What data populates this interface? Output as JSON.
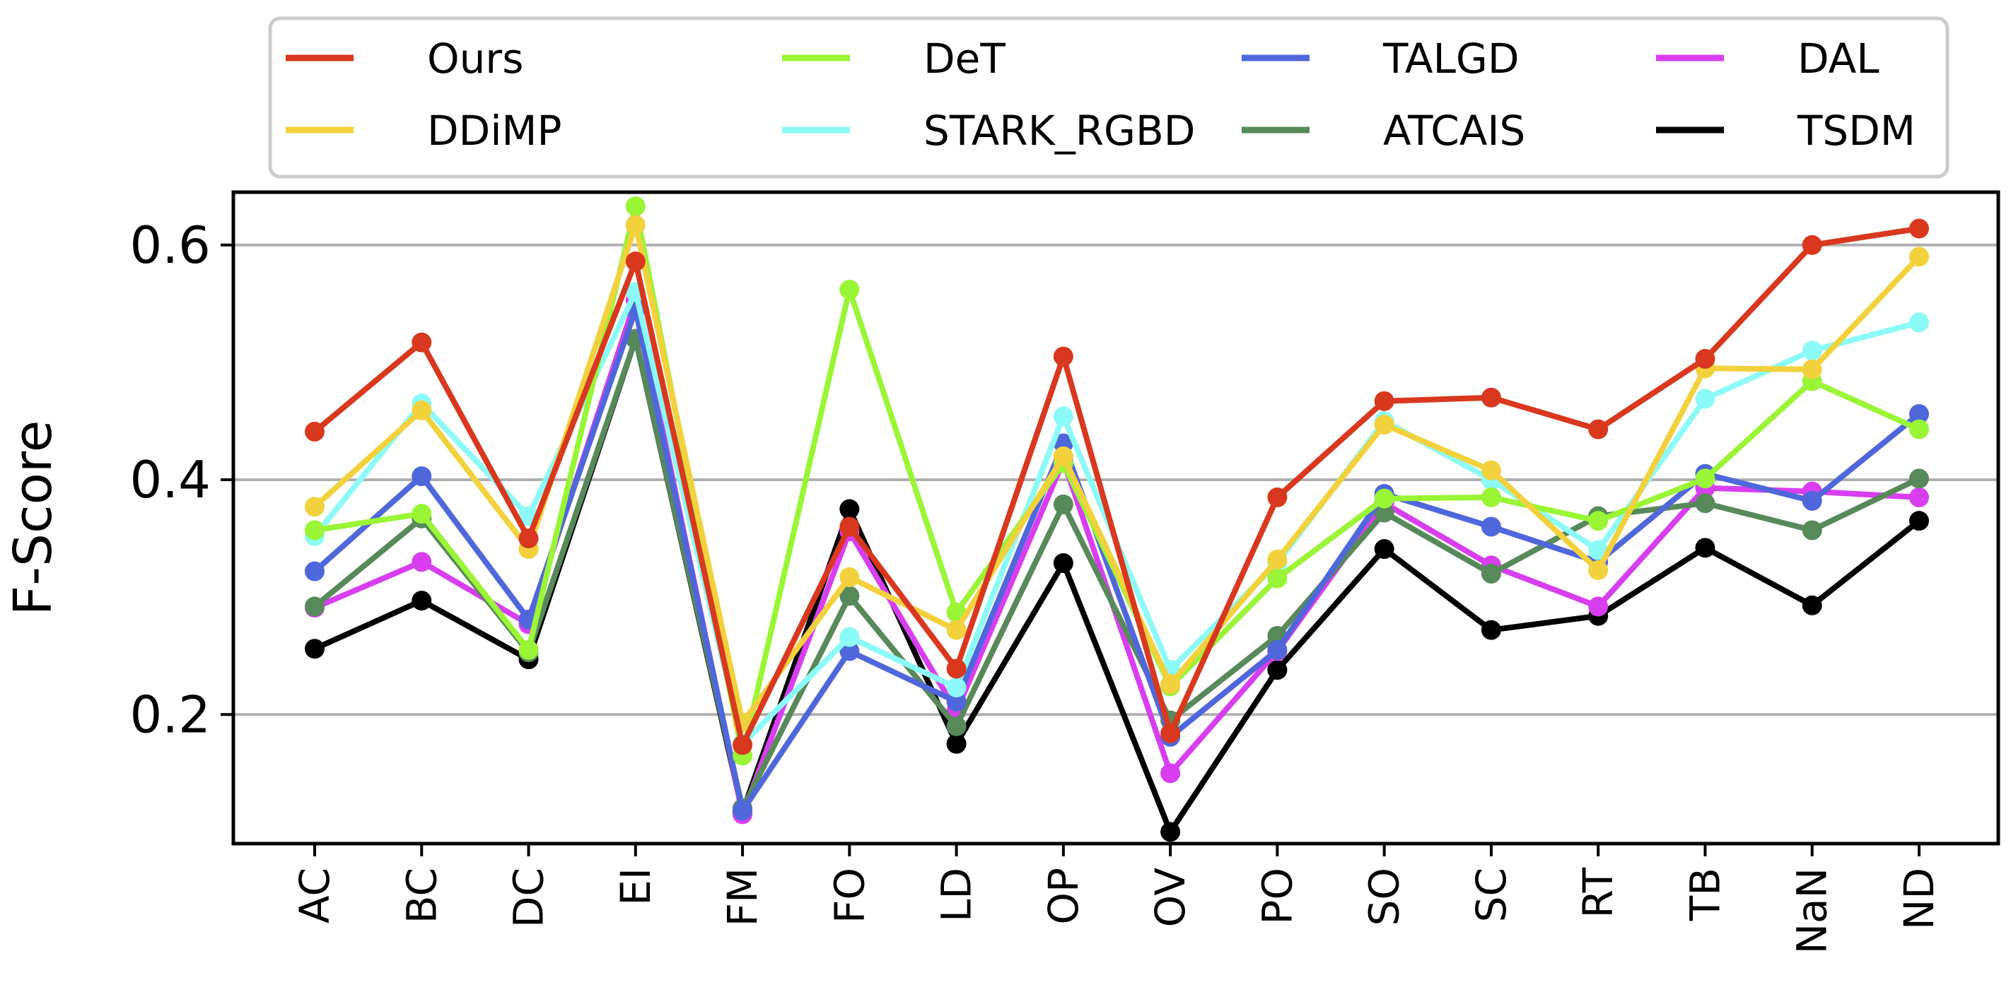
{
  "chart_data": {
    "type": "line",
    "ylabel": "F-Score",
    "xlabel": "",
    "categories": [
      "AC",
      "BC",
      "DC",
      "EI",
      "FM",
      "FO",
      "LD",
      "OP",
      "OV",
      "PO",
      "SO",
      "SC",
      "RT",
      "TB",
      "NaN",
      "ND"
    ],
    "yticks": [
      "0.2",
      "0.4",
      "0.6"
    ],
    "ylim": [
      0.09,
      0.645
    ],
    "grid": "horizontal",
    "legend_position": "top",
    "series": [
      {
        "name": "Ours",
        "color": "#d9381e",
        "values": [
          0.441,
          0.517,
          0.35,
          0.586,
          0.174,
          0.36,
          0.239,
          0.505,
          0.184,
          0.385,
          0.467,
          0.47,
          0.443,
          0.503,
          0.6,
          0.614
        ]
      },
      {
        "name": "DDiMP",
        "color": "#f2d13c",
        "values": [
          0.377,
          0.459,
          0.341,
          0.617,
          0.193,
          0.317,
          0.272,
          0.42,
          0.226,
          0.332,
          0.447,
          0.408,
          0.323,
          0.495,
          0.494,
          0.59
        ]
      },
      {
        "name": "DeT",
        "color": "#99f535",
        "values": [
          0.357,
          0.371,
          0.255,
          0.633,
          0.165,
          0.562,
          0.287,
          0.414,
          0.224,
          0.316,
          0.384,
          0.385,
          0.365,
          0.401,
          0.484,
          0.443
        ]
      },
      {
        "name": "STARK_RGBD",
        "color": "#8bfaf8",
        "values": [
          0.352,
          0.465,
          0.369,
          0.56,
          0.175,
          0.266,
          0.223,
          0.454,
          0.238,
          0.329,
          0.45,
          0.4,
          0.34,
          0.469,
          0.51,
          0.534
        ]
      },
      {
        "name": "TALGD",
        "color": "#4f67db",
        "values": [
          0.322,
          0.403,
          0.281,
          0.545,
          0.118,
          0.254,
          0.211,
          0.431,
          0.181,
          0.255,
          0.388,
          0.36,
          0.33,
          0.405,
          0.382,
          0.456
        ]
      },
      {
        "name": "ATCAIS",
        "color": "#58895a",
        "values": [
          0.292,
          0.367,
          0.253,
          0.52,
          0.12,
          0.301,
          0.19,
          0.379,
          0.195,
          0.267,
          0.372,
          0.32,
          0.369,
          0.38,
          0.357,
          0.401
        ]
      },
      {
        "name": "DAL",
        "color": "#d83ef0",
        "values": [
          0.291,
          0.33,
          0.277,
          0.553,
          0.115,
          0.356,
          0.203,
          0.416,
          0.15,
          0.254,
          0.38,
          0.327,
          0.292,
          0.393,
          0.39,
          0.385
        ]
      },
      {
        "name": "TSDM",
        "color": "#000000",
        "values": [
          0.256,
          0.297,
          0.247,
          0.52,
          0.117,
          0.375,
          0.175,
          0.329,
          0.1,
          0.238,
          0.341,
          0.272,
          0.284,
          0.342,
          0.293,
          0.365
        ]
      }
    ]
  }
}
